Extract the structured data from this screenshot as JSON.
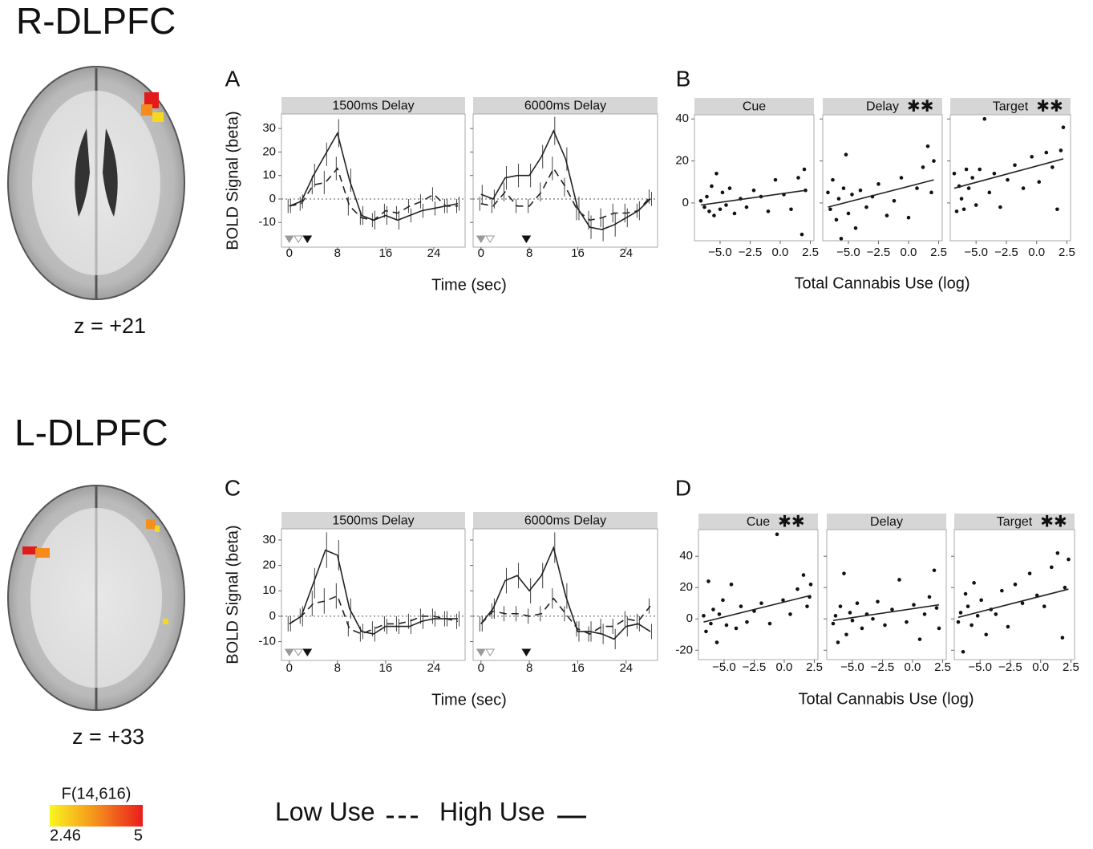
{
  "regions": [
    {
      "title": "R-DLPFC",
      "slice": "z = +21"
    },
    {
      "title": "L-DLPFC",
      "slice": "z = +33"
    }
  ],
  "colorbar": {
    "label": "F(14,616)",
    "min": 2.46,
    "max": 5,
    "colors": [
      "#fbf51e",
      "#f4901c",
      "#ea1c1c"
    ]
  },
  "legend": [
    {
      "name": "Low Use",
      "dash": "9,6"
    },
    {
      "name": "High Use",
      "dash": "none"
    }
  ],
  "chart_data": [
    {
      "type": "line",
      "panel": "A",
      "xlabel": "Time (sec)",
      "ylabel": "BOLD Signal (beta)",
      "x": [
        0,
        2,
        4,
        6,
        8,
        10,
        12,
        14,
        16,
        18,
        20,
        22,
        24,
        26,
        28
      ],
      "xlim": [
        -1.3,
        29.2
      ],
      "xticks": [
        0,
        8,
        16,
        24
      ],
      "ylim": [
        -20.5,
        36.2
      ],
      "yticks": [
        -10,
        0,
        10,
        20,
        30
      ],
      "facets": [
        {
          "title": "1500ms Delay",
          "events": [
            {
              "x": 0,
              "fill": "#999"
            },
            {
              "x": 1.5,
              "fill": "none"
            },
            {
              "x": 3,
              "fill": "#111"
            }
          ],
          "series": [
            {
              "values": [
                -3,
                -2,
                6,
                7,
                13,
                -3,
                -8,
                -9,
                -5,
                -6,
                -3,
                -1,
                2,
                -3,
                -3
              ],
              "errors": [
                3,
                3,
                4,
                5,
                5,
                4,
                3,
                3,
                3,
                3,
                3,
                3,
                3,
                3,
                3
              ]
            },
            {
              "values": [
                -3,
                -1,
                10,
                19,
                28,
                8,
                -7,
                -9,
                -7,
                -9,
                -7,
                -5,
                -4,
                -3,
                -2
              ],
              "errors": [
                3,
                3,
                5,
                5,
                6,
                5,
                4,
                4,
                4,
                4,
                3,
                3,
                3,
                3,
                3
              ]
            }
          ]
        },
        {
          "title": "6000ms Delay",
          "events": [
            {
              "x": 0,
              "fill": "#999"
            },
            {
              "x": 1.5,
              "fill": "none"
            },
            {
              "x": 7.5,
              "fill": "#111"
            }
          ],
          "series": [
            {
              "values": [
                -2,
                -3,
                3,
                -3,
                -3,
                3,
                13,
                5,
                -5,
                -9,
                -8,
                -6,
                -6,
                -5,
                1
              ],
              "errors": [
                3,
                3,
                4,
                3,
                3,
                4,
                5,
                4,
                4,
                4,
                4,
                4,
                4,
                3,
                3
              ]
            },
            {
              "values": [
                2,
                0,
                9,
                10,
                10,
                18,
                29,
                17,
                -4,
                -12,
                -13,
                -11,
                -8,
                -5,
                0
              ],
              "errors": [
                4,
                4,
                5,
                5,
                5,
                5,
                6,
                5,
                5,
                5,
                5,
                5,
                4,
                4,
                3
              ]
            }
          ]
        }
      ]
    },
    {
      "type": "scatter",
      "panel": "B",
      "xlabel": "Total Cannabis Use (log)",
      "xlim": [
        -7.13,
        2.8
      ],
      "xticks": [
        {
          "value": -5,
          "label": "−5.0"
        },
        {
          "value": -2.5,
          "label": "−2.5"
        },
        {
          "value": 0,
          "label": "0.0"
        },
        {
          "value": 2.5,
          "label": "2.5"
        }
      ],
      "ylim": [
        -18,
        42
      ],
      "yticks": [
        0,
        20,
        40
      ],
      "facets": [
        {
          "title": "Cue",
          "x": [
            -6.6,
            -6.3,
            -6.1,
            -5.9,
            -5.7,
            -5.5,
            -5.3,
            -5.0,
            -4.8,
            -4.5,
            -4.2,
            -3.8,
            -3.3,
            -2.8,
            -2.2,
            -1.6,
            -1.0,
            -0.4,
            0.3,
            0.9,
            1.5,
            1.8,
            2.0,
            2.1
          ],
          "y": [
            1,
            -2,
            3,
            -4,
            8,
            -6,
            14,
            -3,
            5,
            -1,
            7,
            -5,
            2,
            -2,
            6,
            3,
            -4,
            11,
            4,
            -3,
            12,
            -15,
            16,
            6
          ],
          "fit": {
            "x": [
              -6.6,
              2.1
            ],
            "y": [
              -1,
              6
            ]
          }
        },
        {
          "title": "Delay",
          "marker": "✱✱",
          "x": [
            -6.7,
            -6.5,
            -6.3,
            -6.0,
            -5.8,
            -5.6,
            -5.4,
            -5.2,
            -5.0,
            -4.7,
            -4.4,
            -4.0,
            -3.5,
            -3.0,
            -2.5,
            -1.8,
            -1.2,
            -0.6,
            0.0,
            0.7,
            1.2,
            1.6,
            1.9,
            2.1
          ],
          "y": [
            5,
            -3,
            11,
            -8,
            2,
            -17,
            7,
            23,
            -5,
            4,
            -12,
            6,
            -2,
            3,
            9,
            -6,
            1,
            12,
            -7,
            7,
            17,
            27,
            5,
            20
          ],
          "fit": {
            "x": [
              -6.7,
              2.1
            ],
            "y": [
              -2,
              11
            ]
          }
        },
        {
          "title": "Target",
          "marker": "✱✱",
          "x": [
            -6.8,
            -6.6,
            -6.4,
            -6.2,
            -6.0,
            -5.8,
            -5.6,
            -5.3,
            -5.0,
            -4.7,
            -4.3,
            -3.9,
            -3.5,
            -3.0,
            -2.4,
            -1.8,
            -1.1,
            -0.4,
            0.2,
            0.8,
            1.3,
            1.7,
            2.0,
            2.2
          ],
          "y": [
            14,
            -4,
            8,
            2,
            -3,
            16,
            7,
            12,
            -1,
            16,
            40,
            5,
            14,
            -2,
            11,
            18,
            7,
            22,
            10,
            24,
            17,
            -3,
            25,
            36
          ],
          "fit": {
            "x": [
              -6.8,
              2.2
            ],
            "y": [
              7,
              21
            ]
          }
        }
      ]
    },
    {
      "type": "line",
      "panel": "C",
      "xlabel": "Time (sec)",
      "ylabel": "BOLD Signal (beta)",
      "x": [
        0,
        2,
        4,
        6,
        8,
        10,
        12,
        14,
        16,
        18,
        20,
        22,
        24,
        26,
        28
      ],
      "xlim": [
        -1.3,
        29.2
      ],
      "xticks": [
        0,
        8,
        16,
        24
      ],
      "ylim": [
        -17.4,
        34.4
      ],
      "yticks": [
        -10,
        0,
        10,
        20,
        30
      ],
      "facets": [
        {
          "title": "1500ms Delay",
          "events": [
            {
              "x": 0,
              "fill": "#999"
            },
            {
              "x": 1.5,
              "fill": "none"
            },
            {
              "x": 3,
              "fill": "#111"
            }
          ],
          "series": [
            {
              "values": [
                -3,
                0,
                5,
                6,
                8,
                -5,
                -7,
                -5,
                -3,
                -3,
                -2,
                0,
                0,
                -1,
                -2
              ],
              "errors": [
                3,
                3,
                5,
                5,
                5,
                3,
                3,
                3,
                3,
                3,
                3,
                3,
                3,
                3,
                3
              ]
            },
            {
              "values": [
                -3,
                0,
                13,
                26,
                24,
                3,
                -6,
                -7,
                -4,
                -4,
                -4,
                -2,
                -1,
                -1,
                -1
              ],
              "errors": [
                3,
                4,
                6,
                7,
                6,
                4,
                3,
                3,
                3,
                3,
                3,
                3,
                3,
                3,
                3
              ]
            }
          ]
        },
        {
          "title": "6000ms Delay",
          "events": [
            {
              "x": 0,
              "fill": "#999"
            },
            {
              "x": 1.5,
              "fill": "none"
            },
            {
              "x": 7.5,
              "fill": "#111"
            }
          ],
          "series": [
            {
              "values": [
                -3,
                2,
                1,
                1,
                0,
                1,
                7,
                1,
                -5,
                -7,
                -4,
                -4,
                -1,
                -2,
                4
              ],
              "errors": [
                3,
                3,
                3,
                3,
                3,
                3,
                4,
                3,
                3,
                3,
                3,
                3,
                3,
                3,
                3
              ]
            },
            {
              "values": [
                -3,
                3,
                14,
                16,
                10,
                16,
                27,
                8,
                -6,
                -6,
                -7,
                -9,
                -4,
                -3,
                -6
              ],
              "errors": [
                3,
                4,
                5,
                5,
                5,
                5,
                6,
                5,
                4,
                4,
                4,
                4,
                4,
                3,
                3
              ]
            }
          ]
        }
      ]
    },
    {
      "type": "scatter",
      "panel": "D",
      "xlabel": "Total Cannabis Use (log)",
      "xlim": [
        -7.13,
        2.8
      ],
      "xticks": [
        {
          "value": -5,
          "label": "−5.0"
        },
        {
          "value": -2.5,
          "label": "−2.5"
        },
        {
          "value": 0,
          "label": "0.0"
        },
        {
          "value": 2.5,
          "label": "2.5"
        }
      ],
      "ylim": [
        -26,
        57
      ],
      "yticks": [
        -20,
        0,
        20,
        40
      ],
      "facets": [
        {
          "title": "Cue",
          "marker": "✱✱",
          "x": [
            -6.7,
            -6.5,
            -6.3,
            -6.1,
            -5.9,
            -5.6,
            -5.4,
            -5.1,
            -4.8,
            -4.4,
            -4.0,
            -3.6,
            -3.1,
            -2.5,
            -1.9,
            -1.2,
            -0.6,
            -0.1,
            0.5,
            1.1,
            1.6,
            1.9,
            2.1,
            2.2
          ],
          "y": [
            2,
            -8,
            24,
            -3,
            6,
            -15,
            3,
            12,
            -4,
            22,
            -6,
            8,
            -2,
            5,
            10,
            -3,
            54,
            12,
            3,
            19,
            28,
            8,
            14,
            22
          ],
          "fit": {
            "x": [
              -6.7,
              2.2
            ],
            "y": [
              -2,
              15
            ]
          }
        },
        {
          "title": "Delay",
          "x": [
            -6.6,
            -6.4,
            -6.2,
            -6.0,
            -5.7,
            -5.5,
            -5.2,
            -5.0,
            -4.6,
            -4.2,
            -3.8,
            -3.3,
            -2.9,
            -2.3,
            -1.7,
            -1.1,
            -0.5,
            0.1,
            0.6,
            1.0,
            1.4,
            1.8,
            2.0,
            2.2
          ],
          "y": [
            -3,
            2,
            -15,
            8,
            29,
            -10,
            4,
            -1,
            10,
            -6,
            3,
            0,
            11,
            -4,
            6,
            25,
            -2,
            9,
            -13,
            3,
            14,
            31,
            7,
            -6
          ],
          "fit": {
            "x": [
              -6.6,
              2.2
            ],
            "y": [
              -1,
              9
            ]
          }
        },
        {
          "title": "Target",
          "marker": "✱✱",
          "x": [
            -6.8,
            -6.6,
            -6.4,
            -6.2,
            -6.0,
            -5.7,
            -5.5,
            -5.2,
            -4.9,
            -4.5,
            -4.1,
            -3.7,
            -3.2,
            -2.7,
            -2.1,
            -1.5,
            -0.9,
            -0.3,
            0.3,
            0.9,
            1.4,
            1.8,
            2.0,
            2.3
          ],
          "y": [
            -2,
            4,
            -21,
            16,
            8,
            -4,
            23,
            2,
            12,
            -10,
            6,
            3,
            18,
            -5,
            22,
            10,
            29,
            15,
            8,
            33,
            42,
            -12,
            20,
            38
          ],
          "fit": {
            "x": [
              -6.8,
              2.3
            ],
            "y": [
              1,
              19
            ]
          }
        }
      ]
    }
  ]
}
